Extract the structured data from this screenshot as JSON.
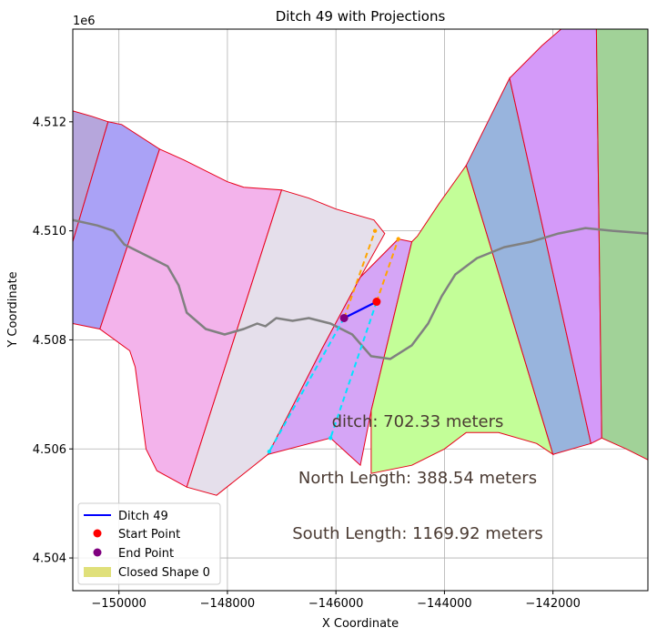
{
  "chart_data": {
    "type": "map-plot",
    "title": "Ditch 49 with Projections",
    "xlabel": "X Coordinate",
    "ylabel": "Y Coordinate",
    "y_offset_label": "1e6",
    "xlim": [
      -150850,
      -140250
    ],
    "ylim": [
      4503.4,
      4513.7
    ],
    "y_units_note": "y values in thousands (axis offset 1e6)",
    "x_ticks": [
      -150000,
      -148000,
      -146000,
      -144000,
      -142000
    ],
    "x_tick_labels": [
      "−150000",
      "−148000",
      "−146000",
      "−144000",
      "−142000"
    ],
    "y_ticks": [
      4504,
      4506,
      4508,
      4510,
      4512
    ],
    "y_tick_labels": [
      "4.504",
      "4.506",
      "4.508",
      "4.510",
      "4.512"
    ],
    "grid": true,
    "legend_position": "lower left",
    "legend": [
      {
        "label": "Ditch 49",
        "kind": "line",
        "color": "#0000ff"
      },
      {
        "label": "Start Point",
        "kind": "dot",
        "color": "#ff0000"
      },
      {
        "label": "End Point",
        "kind": "dot",
        "color": "#800080"
      },
      {
        "label": "Closed Shape 0",
        "kind": "patch",
        "color": "#e0e07a"
      }
    ],
    "annotations": [
      {
        "text": "ditch: 702.33 meters",
        "x": -145500,
        "y": 4506.5
      },
      {
        "text": "North Length: 388.54 meters",
        "x": -145500,
        "y": 4505.5
      },
      {
        "text": "South Length: 1169.92 meters",
        "x": -145500,
        "y": 4504.5
      }
    ],
    "polygons": [
      {
        "color": "#b6a6dc",
        "points": [
          [
            -150850,
            4512.2
          ],
          [
            -150500,
            4512.1
          ],
          [
            -150200,
            4512.0
          ],
          [
            -150850,
            4509.8
          ]
        ]
      },
      {
        "color": "#aaa2f6",
        "points": [
          [
            -150200,
            4512.0
          ],
          [
            -149950,
            4511.95
          ],
          [
            -149250,
            4511.5
          ],
          [
            -150350,
            4508.2
          ],
          [
            -150850,
            4508.3
          ],
          [
            -150850,
            4509.8
          ]
        ]
      },
      {
        "color": "#f3b3eb",
        "points": [
          [
            -149250,
            4511.5
          ],
          [
            -148800,
            4511.3
          ],
          [
            -148000,
            4510.9
          ],
          [
            -147700,
            4510.8
          ],
          [
            -147000,
            4510.75
          ],
          [
            -148750,
            4505.3
          ],
          [
            -149300,
            4505.6
          ],
          [
            -149500,
            4506.0
          ],
          [
            -149700,
            4507.5
          ],
          [
            -149800,
            4507.8
          ],
          [
            -150350,
            4508.2
          ]
        ]
      },
      {
        "color": "#e5dfeb",
        "points": [
          [
            -147000,
            4510.75
          ],
          [
            -146500,
            4510.6
          ],
          [
            -146000,
            4510.4
          ],
          [
            -145300,
            4510.2
          ],
          [
            -145100,
            4509.95
          ],
          [
            -145550,
            4509.15
          ],
          [
            -146250,
            4507.85
          ],
          [
            -147250,
            4505.9
          ],
          [
            -148200,
            4505.15
          ],
          [
            -148750,
            4505.3
          ]
        ]
      },
      {
        "color": "#d5a5f6",
        "points": [
          [
            -144850,
            4509.85
          ],
          [
            -144600,
            4509.8
          ],
          [
            -145350,
            4506.7
          ],
          [
            -145550,
            4505.7
          ],
          [
            -146100,
            4506.2
          ],
          [
            -147250,
            4505.9
          ],
          [
            -146250,
            4507.85
          ],
          [
            -145550,
            4509.15
          ]
        ]
      },
      {
        "color": "#c3fe98",
        "points": [
          [
            -144600,
            4509.8
          ],
          [
            -144500,
            4509.9
          ],
          [
            -144100,
            4510.5
          ],
          [
            -143600,
            4511.2
          ],
          [
            -142000,
            4505.9
          ],
          [
            -142300,
            4506.1
          ],
          [
            -143000,
            4506.3
          ],
          [
            -143600,
            4506.3
          ],
          [
            -144000,
            4506.0
          ],
          [
            -144600,
            4505.7
          ],
          [
            -145350,
            4505.55
          ],
          [
            -145350,
            4506.7
          ]
        ]
      },
      {
        "color": "#98b4dd",
        "points": [
          [
            -143600,
            4511.2
          ],
          [
            -142800,
            4512.8
          ],
          [
            -141300,
            4506.1
          ],
          [
            -142000,
            4505.9
          ]
        ]
      },
      {
        "color": "#d49af9",
        "points": [
          [
            -142800,
            4512.8
          ],
          [
            -142200,
            4513.4
          ],
          [
            -141850,
            4513.7
          ],
          [
            -141200,
            4513.7
          ],
          [
            -141100,
            4506.2
          ],
          [
            -141300,
            4506.1
          ]
        ]
      },
      {
        "color": "#a1d298",
        "points": [
          [
            -141200,
            4513.7
          ],
          [
            -140250,
            4513.7
          ],
          [
            -140250,
            4505.8
          ],
          [
            -140650,
            4506.0
          ],
          [
            -141100,
            4506.2
          ]
        ]
      }
    ],
    "centerline": {
      "color": "#808080",
      "points": [
        [
          -150850,
          4510.2
        ],
        [
          -150400,
          4510.1
        ],
        [
          -150100,
          4510.0
        ],
        [
          -149900,
          4509.75
        ],
        [
          -149500,
          4509.55
        ],
        [
          -149100,
          4509.35
        ],
        [
          -148900,
          4509.0
        ],
        [
          -148750,
          4508.5
        ],
        [
          -148400,
          4508.2
        ],
        [
          -148050,
          4508.1
        ],
        [
          -147700,
          4508.2
        ],
        [
          -147450,
          4508.3
        ],
        [
          -147300,
          4508.25
        ],
        [
          -147100,
          4508.4
        ],
        [
          -146800,
          4508.35
        ],
        [
          -146500,
          4508.4
        ],
        [
          -146100,
          4508.3
        ],
        [
          -145700,
          4508.1
        ],
        [
          -145350,
          4507.7
        ],
        [
          -145000,
          4507.65
        ],
        [
          -144600,
          4507.9
        ],
        [
          -144300,
          4508.3
        ],
        [
          -144050,
          4508.8
        ],
        [
          -143800,
          4509.2
        ],
        [
          -143400,
          4509.5
        ],
        [
          -142900,
          4509.7
        ],
        [
          -142400,
          4509.8
        ],
        [
          -141900,
          4509.95
        ],
        [
          -141400,
          4510.05
        ],
        [
          -140900,
          4510.0
        ],
        [
          -140250,
          4509.95
        ]
      ]
    },
    "ditch": {
      "color": "#0000ff",
      "points": [
        [
          -145250,
          4508.7
        ],
        [
          -145850,
          4508.4
        ]
      ]
    },
    "start_point": {
      "x": -145250,
      "y": 4508.7,
      "color": "#ff0000"
    },
    "end_point": {
      "x": -145850,
      "y": 4508.4,
      "color": "#800080"
    },
    "projection_north": {
      "color": "#ffa500",
      "points": [
        [
          -145850,
          4508.4
        ],
        [
          -145280,
          4510.0
        ],
        [
          -145250,
          4508.7
        ],
        [
          -144850,
          4509.85
        ]
      ]
    },
    "projection_south": {
      "color": "#00e5ff",
      "points": [
        [
          -145850,
          4508.4
        ],
        [
          -147230,
          4505.95
        ],
        [
          -145250,
          4508.7
        ],
        [
          -146100,
          4506.2
        ]
      ]
    }
  }
}
